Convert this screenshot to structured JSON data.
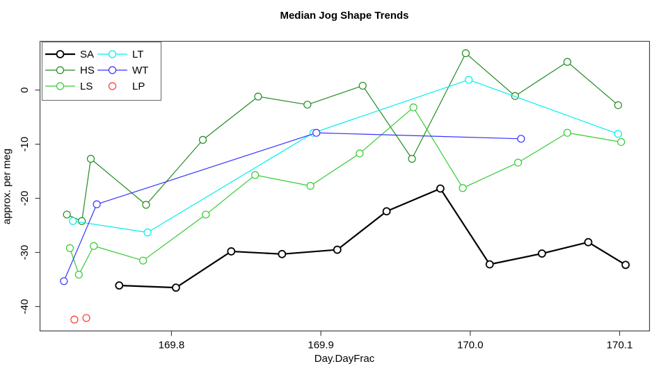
{
  "title": "Median Jog Shape Trends",
  "axes": {
    "xlabel": "Day.DayFrac",
    "ylabel": "approx. per meg",
    "xticks": [
      {
        "label": "169.8",
        "value": 169.8
      },
      {
        "label": "169.9",
        "value": 169.9
      },
      {
        "label": "170.0",
        "value": 170.0
      },
      {
        "label": "170.1",
        "value": 170.1
      }
    ],
    "yticks": [
      {
        "label": "0",
        "value": 0
      },
      {
        "label": "-10",
        "value": -10
      },
      {
        "label": "-20",
        "value": -20
      },
      {
        "label": "-30",
        "value": -30
      },
      {
        "label": "-40",
        "value": -40
      }
    ]
  },
  "legend": {
    "columns": [
      [
        "SA",
        "HS",
        "LS"
      ],
      [
        "LT",
        "WT",
        "LP"
      ]
    ]
  },
  "chart_data": {
    "type": "line",
    "title": "Median Jog Shape Trends",
    "xlabel": "Day.DayFrac",
    "ylabel": "approx. per meg",
    "xlim": [
      169.712,
      170.12
    ],
    "ylim": [
      -44.5,
      9.0
    ],
    "grid": false,
    "legend_position": "top-left",
    "marker": "open-circle",
    "series": [
      {
        "name": "SA",
        "color": "#000000",
        "line": true,
        "line_width": 2.2,
        "marker_stroke": 1.8,
        "points": [
          [
            169.765,
            -36.1
          ],
          [
            169.803,
            -36.5
          ],
          [
            169.84,
            -29.8
          ],
          [
            169.874,
            -30.3
          ],
          [
            169.911,
            -29.5
          ],
          [
            169.944,
            -22.4
          ],
          [
            169.98,
            -18.2
          ],
          [
            170.013,
            -32.2
          ],
          [
            170.048,
            -30.2
          ],
          [
            170.079,
            -28.1
          ],
          [
            170.104,
            -32.3
          ]
        ]
      },
      {
        "name": "HS",
        "color": "#228B22",
        "line": true,
        "line_width": 1.2,
        "marker_stroke": 1.2,
        "points": [
          [
            169.73,
            -23.0
          ],
          [
            169.74,
            -24.2
          ],
          [
            169.746,
            -12.7
          ],
          [
            169.783,
            -21.2
          ],
          [
            169.821,
            -9.2
          ],
          [
            169.858,
            -1.2
          ],
          [
            169.891,
            -2.7
          ],
          [
            169.928,
            0.8
          ],
          [
            169.961,
            -12.7
          ],
          [
            169.997,
            6.8
          ],
          [
            170.03,
            -1.1
          ],
          [
            170.065,
            5.2
          ],
          [
            170.099,
            -2.8
          ]
        ]
      },
      {
        "name": "LS",
        "color": "#33CC33",
        "line": true,
        "line_width": 1.2,
        "marker_stroke": 1.2,
        "points": [
          [
            169.732,
            -29.2
          ],
          [
            169.738,
            -34.1
          ],
          [
            169.748,
            -28.8
          ],
          [
            169.781,
            -31.5
          ],
          [
            169.823,
            -23.0
          ],
          [
            169.856,
            -15.7
          ],
          [
            169.893,
            -17.7
          ],
          [
            169.926,
            -11.7
          ],
          [
            169.962,
            -3.2
          ],
          [
            169.995,
            -18.1
          ],
          [
            170.032,
            -13.4
          ],
          [
            170.065,
            -7.9
          ],
          [
            170.101,
            -9.6
          ]
        ]
      },
      {
        "name": "LT",
        "color": "#00EEEE",
        "line": true,
        "line_width": 1.2,
        "marker_stroke": 1.2,
        "points": [
          [
            169.734,
            -24.2
          ],
          [
            169.784,
            -26.3
          ],
          [
            169.895,
            -7.9
          ],
          [
            169.999,
            1.9
          ],
          [
            170.099,
            -8.1
          ]
        ]
      },
      {
        "name": "WT",
        "color": "#3333FF",
        "line": true,
        "line_width": 1.2,
        "marker_stroke": 1.2,
        "points": [
          [
            169.728,
            -35.3
          ],
          [
            169.75,
            -21.1
          ],
          [
            169.897,
            -7.9
          ],
          [
            170.034,
            -9.0
          ]
        ]
      },
      {
        "name": "LP",
        "color": "#FF3333",
        "line": false,
        "line_width": 1.2,
        "marker_stroke": 1.2,
        "points": [
          [
            169.735,
            -42.4
          ],
          [
            169.743,
            -42.1
          ]
        ]
      }
    ]
  }
}
